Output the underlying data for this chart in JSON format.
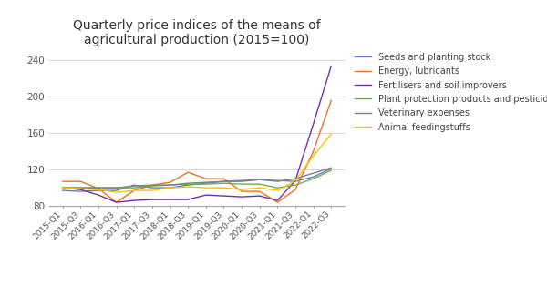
{
  "title": "Quarterly price indices of the means of\nagricultural production (2015=100)",
  "xlabels": [
    "2015-Q1",
    "2015-Q3",
    "2016-Q1",
    "2016-Q3",
    "2017-Q1",
    "2017-Q3",
    "2018-Q1",
    "2018-Q3",
    "2019-Q1",
    "2019-Q3",
    "2020-Q1",
    "2020-Q3",
    "2021-Q1",
    "2021-Q3",
    "2022-Q1",
    "2022-Q3"
  ],
  "ylim": [
    80,
    250
  ],
  "yticks": [
    80,
    120,
    160,
    200,
    240
  ],
  "series": {
    "Seeds and planting stock": {
      "color": "#5B7EC9",
      "values": [
        97,
        96,
        97,
        97,
        103,
        100,
        100,
        103,
        105,
        107,
        107,
        109,
        108,
        107,
        112,
        121
      ]
    },
    "Energy, lubricants": {
      "color": "#E8722A",
      "values": [
        107,
        107,
        99,
        84,
        97,
        103,
        106,
        117,
        110,
        110,
        96,
        96,
        84,
        98,
        140,
        196
      ]
    },
    "Fertilisers and soil improvers": {
      "color": "#7030A0",
      "values": [
        100,
        98,
        92,
        84,
        86,
        87,
        87,
        87,
        92,
        91,
        90,
        91,
        86,
        108,
        170,
        234
      ]
    },
    "Plant protection products and pesticides": {
      "color": "#70AD47",
      "values": [
        100,
        100,
        100,
        100,
        100,
        102,
        103,
        104,
        104,
        105,
        104,
        104,
        100,
        103,
        110,
        119
      ]
    },
    "Veterinary expenses": {
      "color": "#808080",
      "values": [
        100,
        100,
        100,
        100,
        102,
        103,
        103,
        105,
        106,
        107,
        108,
        109,
        107,
        110,
        116,
        122
      ]
    },
    "Animal feedingstuffs": {
      "color": "#FFC000",
      "values": [
        100,
        99,
        98,
        95,
        97,
        97,
        100,
        101,
        100,
        100,
        98,
        100,
        97,
        108,
        135,
        159
      ]
    }
  },
  "background_color": "#ffffff",
  "grid_color": "#d0d0d0",
  "title_fontsize": 10,
  "legend_fontsize": 7,
  "tick_fontsize": 6.5,
  "ytick_fontsize": 7.5
}
